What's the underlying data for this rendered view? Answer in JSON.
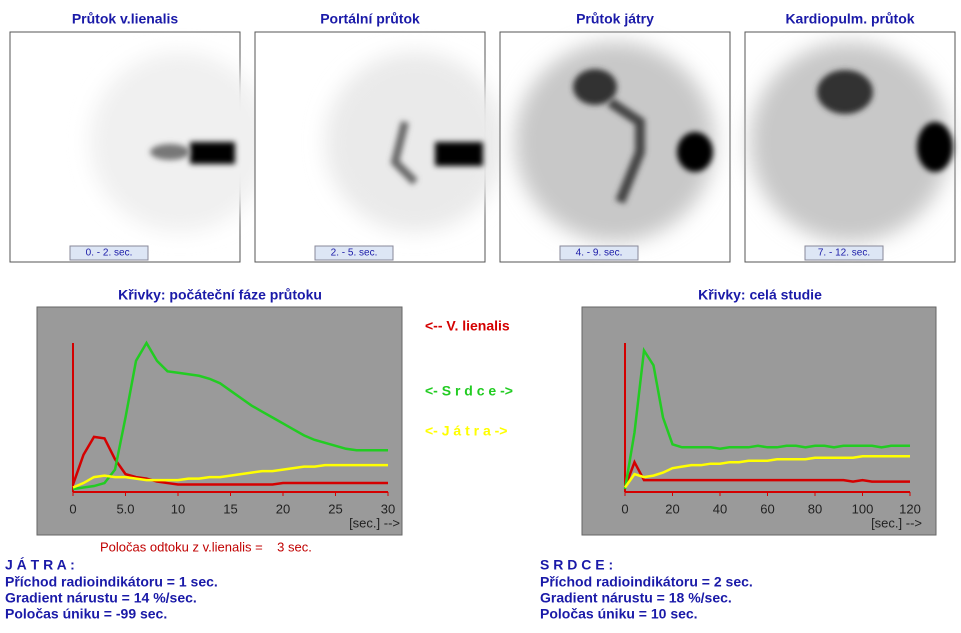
{
  "panels": [
    {
      "title": "Průtok v.lienalis",
      "time": "0. - 2. sec."
    },
    {
      "title": "Portální průtok",
      "time": "2. - 5. sec."
    },
    {
      "title": "Průtok játry",
      "time": "4. - 9. sec."
    },
    {
      "title": "Kardiopulm. průtok",
      "time": "7. - 12. sec."
    }
  ],
  "charts": [
    {
      "type": "line",
      "title": "Křivky: počáteční fáze průtoku",
      "x_label": "[sec.] -->",
      "xlim": [
        0,
        30
      ],
      "xticks": [
        0,
        {
          "value": 5,
          "label": "5.0"
        },
        10,
        15,
        20,
        25,
        30
      ],
      "ylim": [
        0,
        100
      ],
      "x": [
        0,
        1,
        2,
        3,
        4,
        5,
        6,
        7,
        8,
        9,
        10,
        11,
        12,
        13,
        14,
        15,
        16,
        17,
        18,
        19,
        20,
        21,
        22,
        23,
        24,
        25,
        26,
        27,
        28,
        29,
        30
      ],
      "series": [
        {
          "color": "#d40000",
          "values": [
            5,
            25,
            37,
            36,
            22,
            12,
            10,
            9,
            7,
            6,
            5,
            5,
            5,
            5,
            5,
            5,
            5,
            5,
            5,
            5,
            6,
            6,
            6,
            6,
            6,
            6,
            6,
            6,
            6,
            6,
            6
          ]
        },
        {
          "color": "#22cc22",
          "values": [
            2,
            3,
            4,
            6,
            15,
            50,
            88,
            100,
            88,
            81,
            80,
            79,
            78,
            76,
            73,
            68,
            63,
            58,
            54,
            50,
            46,
            42,
            38,
            35,
            33,
            31,
            29,
            28,
            28,
            28,
            28
          ]
        },
        {
          "color": "#ffff00",
          "values": [
            3,
            6,
            10,
            11,
            10,
            10,
            9,
            8,
            8,
            8,
            8,
            9,
            9,
            10,
            10,
            11,
            12,
            13,
            14,
            14,
            15,
            16,
            17,
            17,
            18,
            18,
            18,
            18,
            18,
            18,
            18
          ]
        }
      ]
    },
    {
      "type": "line",
      "title": "Křivky:  celá studie",
      "x_label": "[sec.] -->",
      "xlim": [
        0,
        120
      ],
      "xticks": [
        0,
        20,
        40,
        60,
        80,
        100,
        120
      ],
      "ylim": [
        0,
        100
      ],
      "x": [
        0,
        4,
        8,
        12,
        16,
        20,
        24,
        28,
        32,
        36,
        40,
        44,
        48,
        52,
        56,
        60,
        64,
        68,
        72,
        76,
        80,
        84,
        88,
        92,
        96,
        100,
        104,
        108,
        112,
        116,
        120
      ],
      "series": [
        {
          "color": "#d40000",
          "values": [
            3,
            20,
            8,
            8,
            8,
            8,
            8,
            8,
            8,
            8,
            8,
            8,
            8,
            8,
            8,
            8,
            8,
            8,
            8,
            8,
            8,
            8,
            8,
            8,
            7,
            8,
            7,
            7,
            7,
            7,
            7
          ]
        },
        {
          "color": "#22cc22",
          "values": [
            2,
            40,
            95,
            85,
            50,
            32,
            30,
            30,
            30,
            30,
            29,
            30,
            30,
            30,
            31,
            30,
            30,
            31,
            31,
            30,
            31,
            31,
            30,
            31,
            31,
            31,
            31,
            30,
            31,
            31,
            31
          ]
        },
        {
          "color": "#ffff00",
          "values": [
            3,
            12,
            10,
            11,
            13,
            16,
            17,
            18,
            18,
            19,
            19,
            20,
            20,
            21,
            21,
            21,
            22,
            22,
            22,
            22,
            23,
            23,
            23,
            23,
            23,
            24,
            24,
            24,
            24,
            24,
            24
          ]
        }
      ]
    }
  ],
  "legend": [
    {
      "text": "<-- V. lienalis",
      "color": "#d40000"
    },
    {
      "text": "<- S r d c e ->",
      "color": "#22cc22"
    },
    {
      "text": "<- J á t r a ->",
      "color": "#ffff00"
    }
  ],
  "note": "Poločas odtoku z v.lienalis =    3 sec.",
  "liver": {
    "heading": "J Á T R A :",
    "lines": [
      "Příchod radioindikátoru = 1 sec.",
      "Gradient nárustu = 14 %/sec.",
      "Poločas úniku = -99 sec."
    ]
  },
  "heart": {
    "heading": "S R D C E :",
    "lines": [
      "Příchod radioindikátoru = 2 sec.",
      "Gradient nárustu = 18 %/sec.",
      "Poločas úniku = 10 sec."
    ]
  }
}
